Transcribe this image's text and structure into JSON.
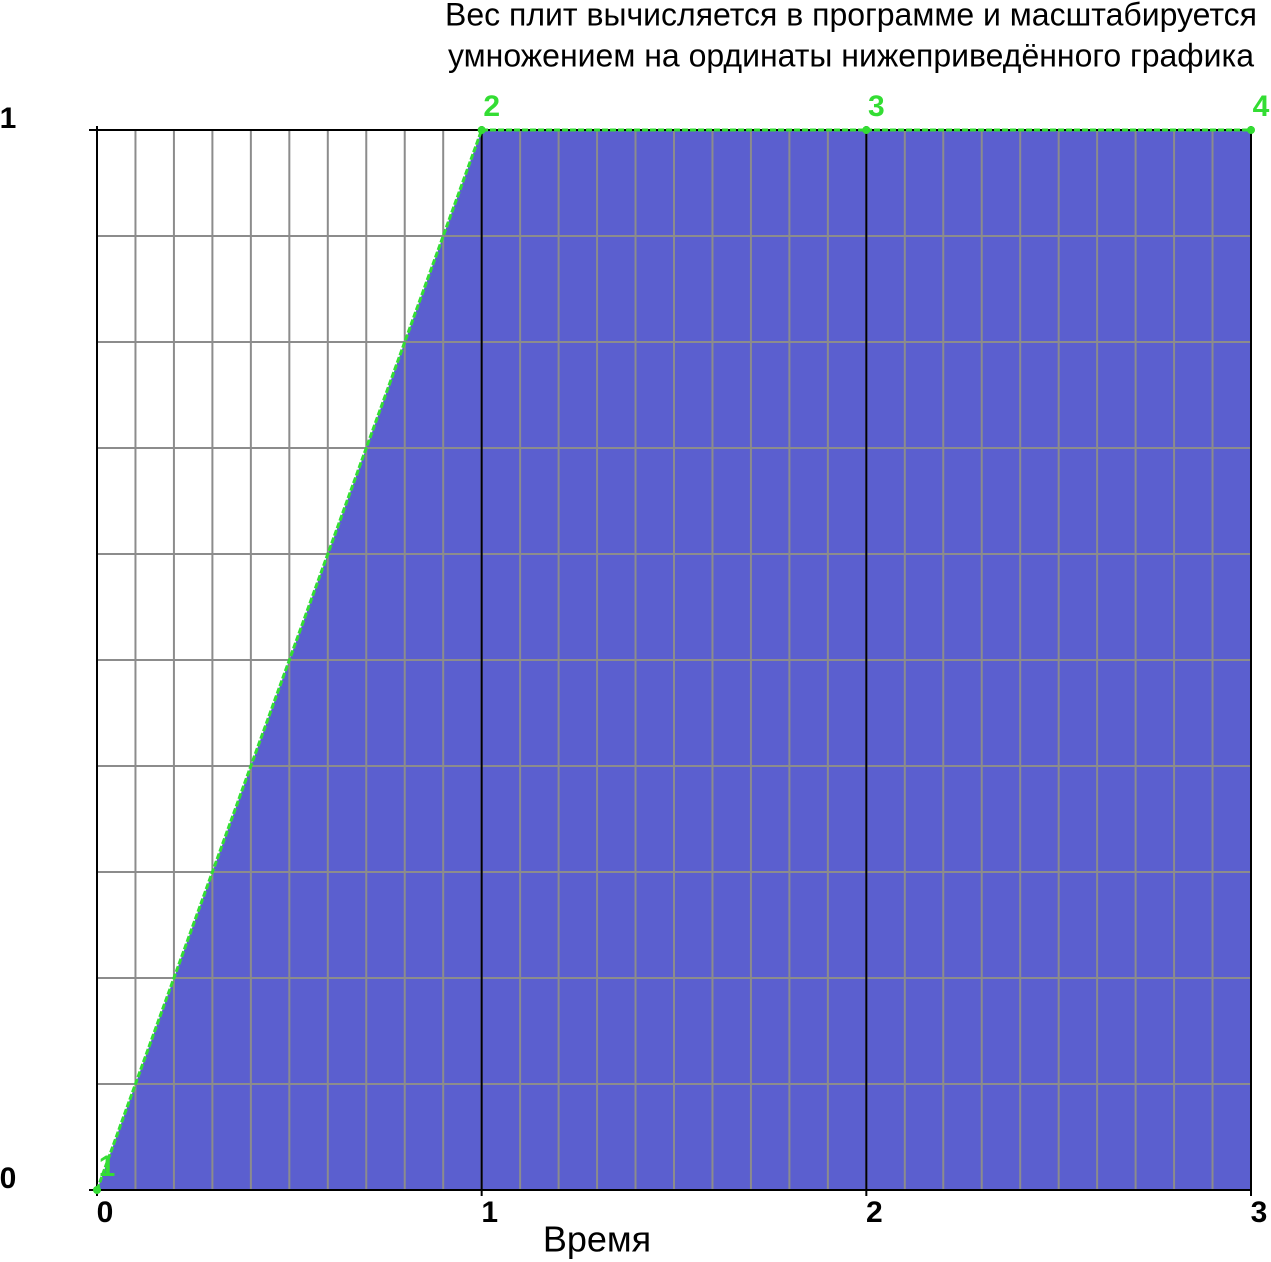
{
  "chart_data": {
    "type": "area",
    "title": [
      "Вес плит вычисляется в программе и масштабируется",
      "умножением на ординаты нижеприведённого графика"
    ],
    "xlabel": "Время",
    "x": [
      0,
      1,
      2,
      3
    ],
    "series": [
      {
        "color": "#5b5fcf",
        "line_color": "#33dd33",
        "values": [
          0,
          1,
          1,
          1
        ],
        "point_labels": [
          "1",
          "2",
          "3",
          "4"
        ]
      }
    ],
    "xlim": [
      0,
      3
    ],
    "ylim": [
      0,
      1
    ],
    "xticks": [
      0,
      1,
      2,
      3
    ],
    "yticks": [
      0,
      1
    ],
    "grid": true
  }
}
